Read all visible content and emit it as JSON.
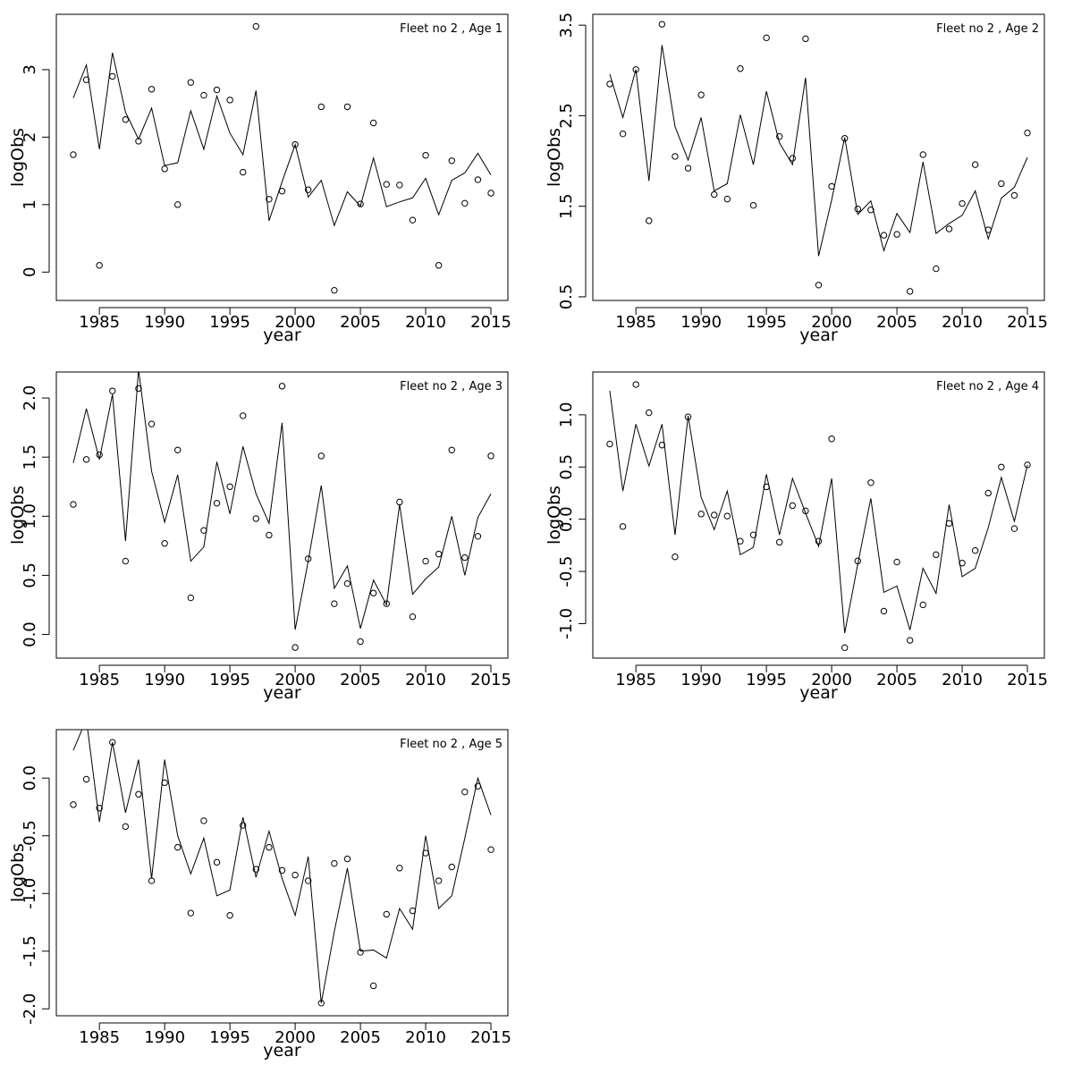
{
  "figure": {
    "layout": "3 rows x 2 columns, last cell empty"
  },
  "chart_data": [
    {
      "type": "line",
      "title": "Fleet no 2 , Age 1",
      "xlabel": "year",
      "ylabel": "logObs",
      "xlim": [
        1981.7,
        2016.3
      ],
      "ylim": [
        -0.42,
        3.82
      ],
      "xticks": [
        1985,
        1990,
        1995,
        2000,
        2005,
        2010,
        2015
      ],
      "yticks": [
        0,
        1,
        2,
        3
      ],
      "ytick_labels": [
        "0",
        "1",
        "2",
        "3"
      ],
      "grid": false,
      "x": [
        1983,
        1984,
        1985,
        1986,
        1987,
        1988,
        1989,
        1990,
        1991,
        1992,
        1993,
        1994,
        1995,
        1996,
        1997,
        1998,
        1999,
        2000,
        2001,
        2002,
        2003,
        2004,
        2005,
        2006,
        2007,
        2008,
        2009,
        2010,
        2011,
        2012,
        2013,
        2014,
        2015
      ],
      "series": [
        {
          "style": "points",
          "values": [
            1.74,
            2.85,
            0.1,
            2.9,
            2.26,
            1.94,
            2.71,
            1.53,
            1.0,
            2.81,
            2.62,
            2.7,
            2.55,
            1.48,
            3.64,
            1.08,
            1.2,
            1.89,
            1.22,
            2.45,
            -0.27,
            2.45,
            1.01,
            2.21,
            1.3,
            1.29,
            0.77,
            1.73,
            0.1,
            1.65,
            1.02,
            1.37,
            1.17
          ]
        },
        {
          "style": "line",
          "values": [
            2.58,
            3.07,
            1.82,
            3.25,
            2.37,
            1.97,
            2.43,
            1.58,
            1.62,
            2.39,
            1.82,
            2.61,
            2.06,
            1.74,
            2.69,
            0.76,
            1.34,
            1.89,
            1.11,
            1.36,
            0.69,
            1.19,
            0.98,
            1.69,
            0.97,
            1.04,
            1.1,
            1.39,
            0.85,
            1.36,
            1.47,
            1.76,
            1.44
          ]
        }
      ]
    },
    {
      "type": "line",
      "title": "Fleet no 2 , Age 2",
      "xlabel": "year",
      "ylabel": "logObs",
      "xlim": [
        1981.7,
        2016.3
      ],
      "ylim": [
        0.46,
        3.62
      ],
      "xticks": [
        1985,
        1990,
        1995,
        2000,
        2005,
        2010,
        2015
      ],
      "yticks": [
        0.5,
        1.5,
        2.5,
        3.5
      ],
      "ytick_labels": [
        "0.5",
        "1.5",
        "2.5",
        "3.5"
      ],
      "grid": false,
      "x": [
        1983,
        1984,
        1985,
        1986,
        1987,
        1988,
        1989,
        1990,
        1991,
        1992,
        1993,
        1994,
        1995,
        1996,
        1997,
        1998,
        1999,
        2000,
        2001,
        2002,
        2003,
        2004,
        2005,
        2006,
        2007,
        2008,
        2009,
        2010,
        2011,
        2012,
        2013,
        2014,
        2015
      ],
      "series": [
        {
          "style": "points",
          "values": [
            2.85,
            2.3,
            3.01,
            1.34,
            3.51,
            2.05,
            1.92,
            2.73,
            1.63,
            1.58,
            3.02,
            1.51,
            3.36,
            2.27,
            2.03,
            3.35,
            0.63,
            1.72,
            2.25,
            1.47,
            1.46,
            1.18,
            1.19,
            0.56,
            2.07,
            0.81,
            1.25,
            1.53,
            1.96,
            1.24,
            1.75,
            1.62,
            2.31
          ]
        },
        {
          "style": "line",
          "values": [
            2.96,
            2.48,
            3.01,
            1.78,
            3.28,
            2.38,
            2.01,
            2.48,
            1.67,
            1.75,
            2.51,
            1.96,
            2.77,
            2.2,
            1.96,
            2.92,
            0.95,
            1.57,
            2.26,
            1.41,
            1.56,
            1.01,
            1.42,
            1.21,
            1.99,
            1.2,
            1.31,
            1.4,
            1.67,
            1.14,
            1.59,
            1.71,
            2.04
          ]
        }
      ]
    },
    {
      "type": "line",
      "title": "Fleet no 2 , Age 3",
      "xlabel": "year",
      "ylabel": "logObs",
      "xlim": [
        1981.7,
        2016.3
      ],
      "ylim": [
        -0.2,
        2.22
      ],
      "xticks": [
        1985,
        1990,
        1995,
        2000,
        2005,
        2010,
        2015
      ],
      "yticks": [
        0.0,
        0.5,
        1.0,
        1.5,
        2.0
      ],
      "ytick_labels": [
        "0.0",
        "0.5",
        "1.0",
        "1.5",
        "2.0"
      ],
      "grid": false,
      "x": [
        1983,
        1984,
        1985,
        1986,
        1987,
        1988,
        1989,
        1990,
        1991,
        1992,
        1993,
        1994,
        1995,
        1996,
        1997,
        1998,
        1999,
        2000,
        2001,
        2002,
        2003,
        2004,
        2005,
        2006,
        2007,
        2008,
        2009,
        2010,
        2011,
        2012,
        2013,
        2014,
        2015
      ],
      "series": [
        {
          "style": "points",
          "values": [
            1.1,
            1.48,
            1.52,
            2.06,
            0.62,
            2.08,
            1.78,
            0.77,
            1.56,
            0.31,
            0.88,
            1.11,
            1.25,
            1.85,
            0.98,
            0.84,
            2.1,
            -0.11,
            0.64,
            1.51,
            0.26,
            0.43,
            -0.06,
            0.35,
            0.26,
            1.12,
            0.15,
            0.62,
            0.68,
            1.56,
            0.65,
            0.83,
            1.51
          ]
        },
        {
          "style": "line",
          "values": [
            1.45,
            1.91,
            1.48,
            2.03,
            0.79,
            2.24,
            1.38,
            0.95,
            1.35,
            0.62,
            0.74,
            1.46,
            1.02,
            1.59,
            1.19,
            0.94,
            1.79,
            0.04,
            0.62,
            1.26,
            0.39,
            0.58,
            0.05,
            0.46,
            0.25,
            1.1,
            0.34,
            0.47,
            0.57,
            1.0,
            0.5,
            0.99,
            1.19
          ]
        }
      ]
    },
    {
      "type": "line",
      "title": "Fleet no 2 , Age 4",
      "xlabel": "year",
      "ylabel": "logObs",
      "xlim": [
        1981.7,
        2016.3
      ],
      "ylim": [
        -1.33,
        1.41
      ],
      "xticks": [
        1985,
        1990,
        1995,
        2000,
        2005,
        2010,
        2015
      ],
      "yticks": [
        -1.0,
        -0.5,
        0.0,
        0.5,
        1.0
      ],
      "ytick_labels": [
        "-1.0",
        "-0.5",
        "0.0",
        "0.5",
        "1.0"
      ],
      "grid": false,
      "x": [
        1983,
        1984,
        1985,
        1986,
        1987,
        1988,
        1989,
        1990,
        1991,
        1992,
        1993,
        1994,
        1995,
        1996,
        1997,
        1998,
        1999,
        2000,
        2001,
        2002,
        2003,
        2004,
        2005,
        2006,
        2007,
        2008,
        2009,
        2010,
        2011,
        2012,
        2013,
        2014,
        2015
      ],
      "series": [
        {
          "style": "points",
          "values": [
            0.72,
            -0.07,
            1.29,
            1.02,
            0.71,
            -0.36,
            0.98,
            0.05,
            0.04,
            0.03,
            -0.21,
            -0.15,
            0.31,
            -0.22,
            0.13,
            0.08,
            -0.21,
            0.77,
            -1.23,
            -0.4,
            0.35,
            -0.88,
            -0.41,
            -1.16,
            -0.82,
            -0.34,
            -0.04,
            -0.42,
            -0.3,
            0.25,
            0.5,
            -0.09,
            0.52
          ]
        },
        {
          "style": "line",
          "values": [
            1.23,
            0.27,
            0.91,
            0.51,
            0.91,
            -0.15,
            0.99,
            0.21,
            -0.1,
            0.27,
            -0.34,
            -0.27,
            0.43,
            -0.15,
            0.39,
            0.06,
            -0.26,
            0.39,
            -1.09,
            -0.43,
            0.2,
            -0.7,
            -0.64,
            -1.06,
            -0.47,
            -0.71,
            0.14,
            -0.55,
            -0.47,
            -0.08,
            0.4,
            -0.02,
            0.52
          ]
        }
      ]
    },
    {
      "type": "line",
      "title": "Fleet no 2 , Age 5",
      "xlabel": "year",
      "ylabel": "logObs",
      "xlim": [
        1981.7,
        2016.3
      ],
      "ylim": [
        -2.06,
        0.42
      ],
      "xticks": [
        1985,
        1990,
        1995,
        2000,
        2005,
        2010,
        2015
      ],
      "yticks": [
        -2.0,
        -1.5,
        -1.0,
        -0.5,
        0.0
      ],
      "ytick_labels": [
        "-2.0",
        "-1.5",
        "-1.0",
        "-0.5",
        "0.0"
      ],
      "grid": false,
      "x": [
        1983,
        1984,
        1985,
        1986,
        1987,
        1988,
        1989,
        1990,
        1991,
        1992,
        1993,
        1994,
        1995,
        1996,
        1997,
        1998,
        1999,
        2000,
        2001,
        2002,
        2003,
        2004,
        2005,
        2006,
        2007,
        2008,
        2009,
        2010,
        2011,
        2012,
        2013,
        2014,
        2015
      ],
      "series": [
        {
          "style": "points",
          "values": [
            -0.23,
            -0.01,
            -0.26,
            0.31,
            -0.42,
            -0.14,
            -0.89,
            -0.04,
            -0.6,
            -1.17,
            -0.37,
            -0.73,
            -1.19,
            -0.41,
            -0.79,
            -0.6,
            -0.8,
            -0.84,
            -0.89,
            -1.95,
            -0.74,
            -0.7,
            -1.51,
            -1.8,
            -1.18,
            -0.78,
            -1.15,
            -0.65,
            -0.89,
            -0.77,
            -0.12,
            -0.07,
            -0.62
          ]
        },
        {
          "style": "line",
          "values": [
            0.24,
            0.51,
            -0.38,
            0.31,
            -0.3,
            0.16,
            -0.87,
            0.16,
            -0.5,
            -0.83,
            -0.52,
            -1.02,
            -0.97,
            -0.34,
            -0.86,
            -0.46,
            -0.87,
            -1.19,
            -0.68,
            -1.95,
            -1.33,
            -0.78,
            -1.5,
            -1.49,
            -1.56,
            -1.13,
            -1.31,
            -0.5,
            -1.13,
            -1.02,
            -0.52,
            0.0,
            -0.32
          ]
        }
      ]
    }
  ]
}
